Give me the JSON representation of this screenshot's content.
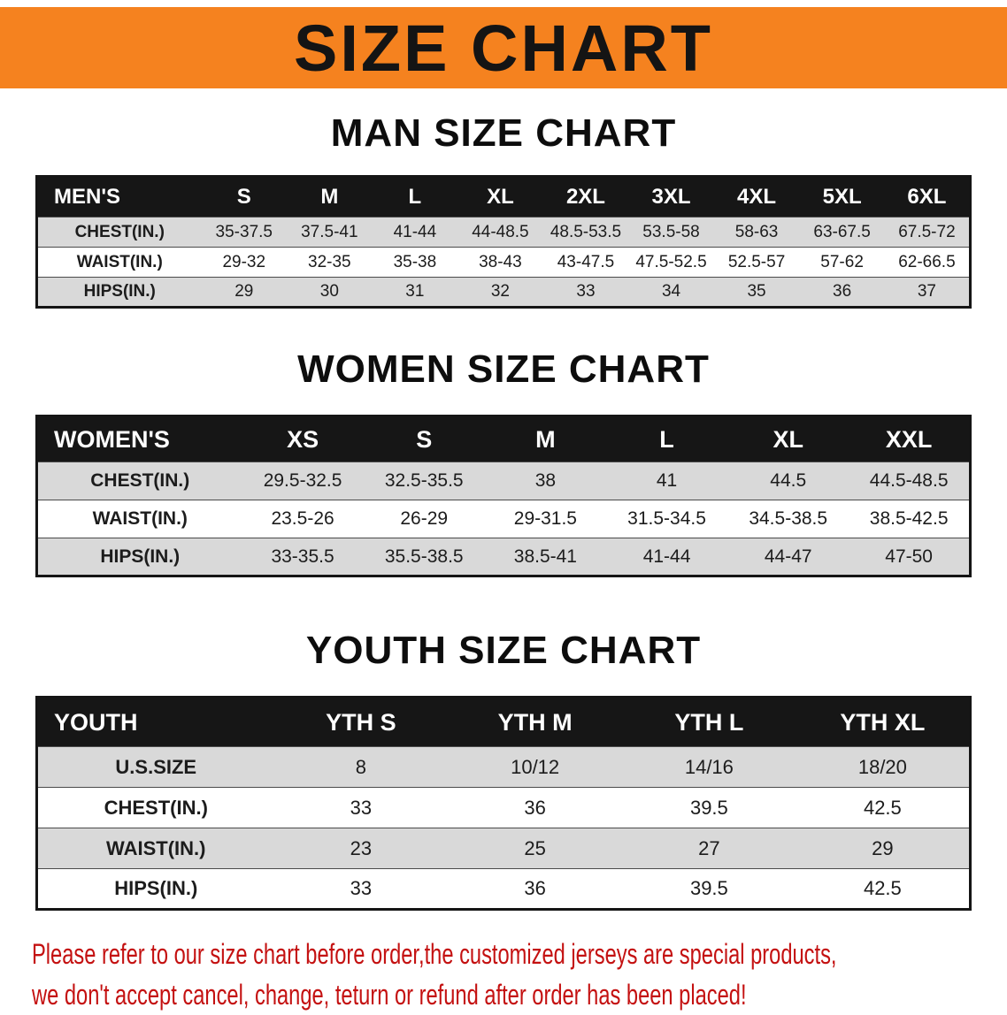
{
  "banner": {
    "title": "SIZE CHART"
  },
  "colors": {
    "banner_bg": "#F5821F",
    "header_bg": "#161616",
    "row_alt": "#D9D9D9",
    "disclaimer_text": "#C41111"
  },
  "sections": {
    "men": {
      "heading": "MAN SIZE CHART",
      "header": [
        "MEN'S",
        "S",
        "M",
        "L",
        "XL",
        "2XL",
        "3XL",
        "4XL",
        "5XL",
        "6XL"
      ],
      "rows": [
        {
          "label": "CHEST(IN.)",
          "values": [
            "35-37.5",
            "37.5-41",
            "41-44",
            "44-48.5",
            "48.5-53.5",
            "53.5-58",
            "58-63",
            "63-67.5",
            "67.5-72"
          ]
        },
        {
          "label": "WAIST(IN.)",
          "values": [
            "29-32",
            "32-35",
            "35-38",
            "38-43",
            "43-47.5",
            "47.5-52.5",
            "52.5-57",
            "57-62",
            "62-66.5"
          ]
        },
        {
          "label": "HIPS(IN.)",
          "values": [
            "29",
            "30",
            "31",
            "32",
            "33",
            "34",
            "35",
            "36",
            "37"
          ]
        }
      ]
    },
    "women": {
      "heading": "WOMEN SIZE CHART",
      "header": [
        "WOMEN'S",
        "XS",
        "S",
        "M",
        "L",
        "XL",
        "XXL"
      ],
      "rows": [
        {
          "label": "CHEST(IN.)",
          "values": [
            "29.5-32.5",
            "32.5-35.5",
            "38",
            "41",
            "44.5",
            "44.5-48.5"
          ]
        },
        {
          "label": "WAIST(IN.)",
          "values": [
            "23.5-26",
            "26-29",
            "29-31.5",
            "31.5-34.5",
            "34.5-38.5",
            "38.5-42.5"
          ]
        },
        {
          "label": "HIPS(IN.)",
          "values": [
            "33-35.5",
            "35.5-38.5",
            "38.5-41",
            "41-44",
            "44-47",
            "47-50"
          ]
        }
      ]
    },
    "youth": {
      "heading": "YOUTH SIZE CHART",
      "header": [
        "YOUTH",
        "YTH S",
        "YTH M",
        "YTH L",
        "YTH XL"
      ],
      "rows": [
        {
          "label": "U.S.SIZE",
          "values": [
            "8",
            "10/12",
            "14/16",
            "18/20"
          ]
        },
        {
          "label": "CHEST(IN.)",
          "values": [
            "33",
            "36",
            "39.5",
            "42.5"
          ]
        },
        {
          "label": "WAIST(IN.)",
          "values": [
            "23",
            "25",
            "27",
            "29"
          ]
        },
        {
          "label": "HIPS(IN.)",
          "values": [
            "33",
            "36",
            "39.5",
            "42.5"
          ]
        }
      ]
    }
  },
  "disclaimer": {
    "line1": "Please refer to our size chart before order,the customized jerseys are special products,",
    "line2": "we don't accept cancel, change, teturn or refund after order has been placed!"
  }
}
